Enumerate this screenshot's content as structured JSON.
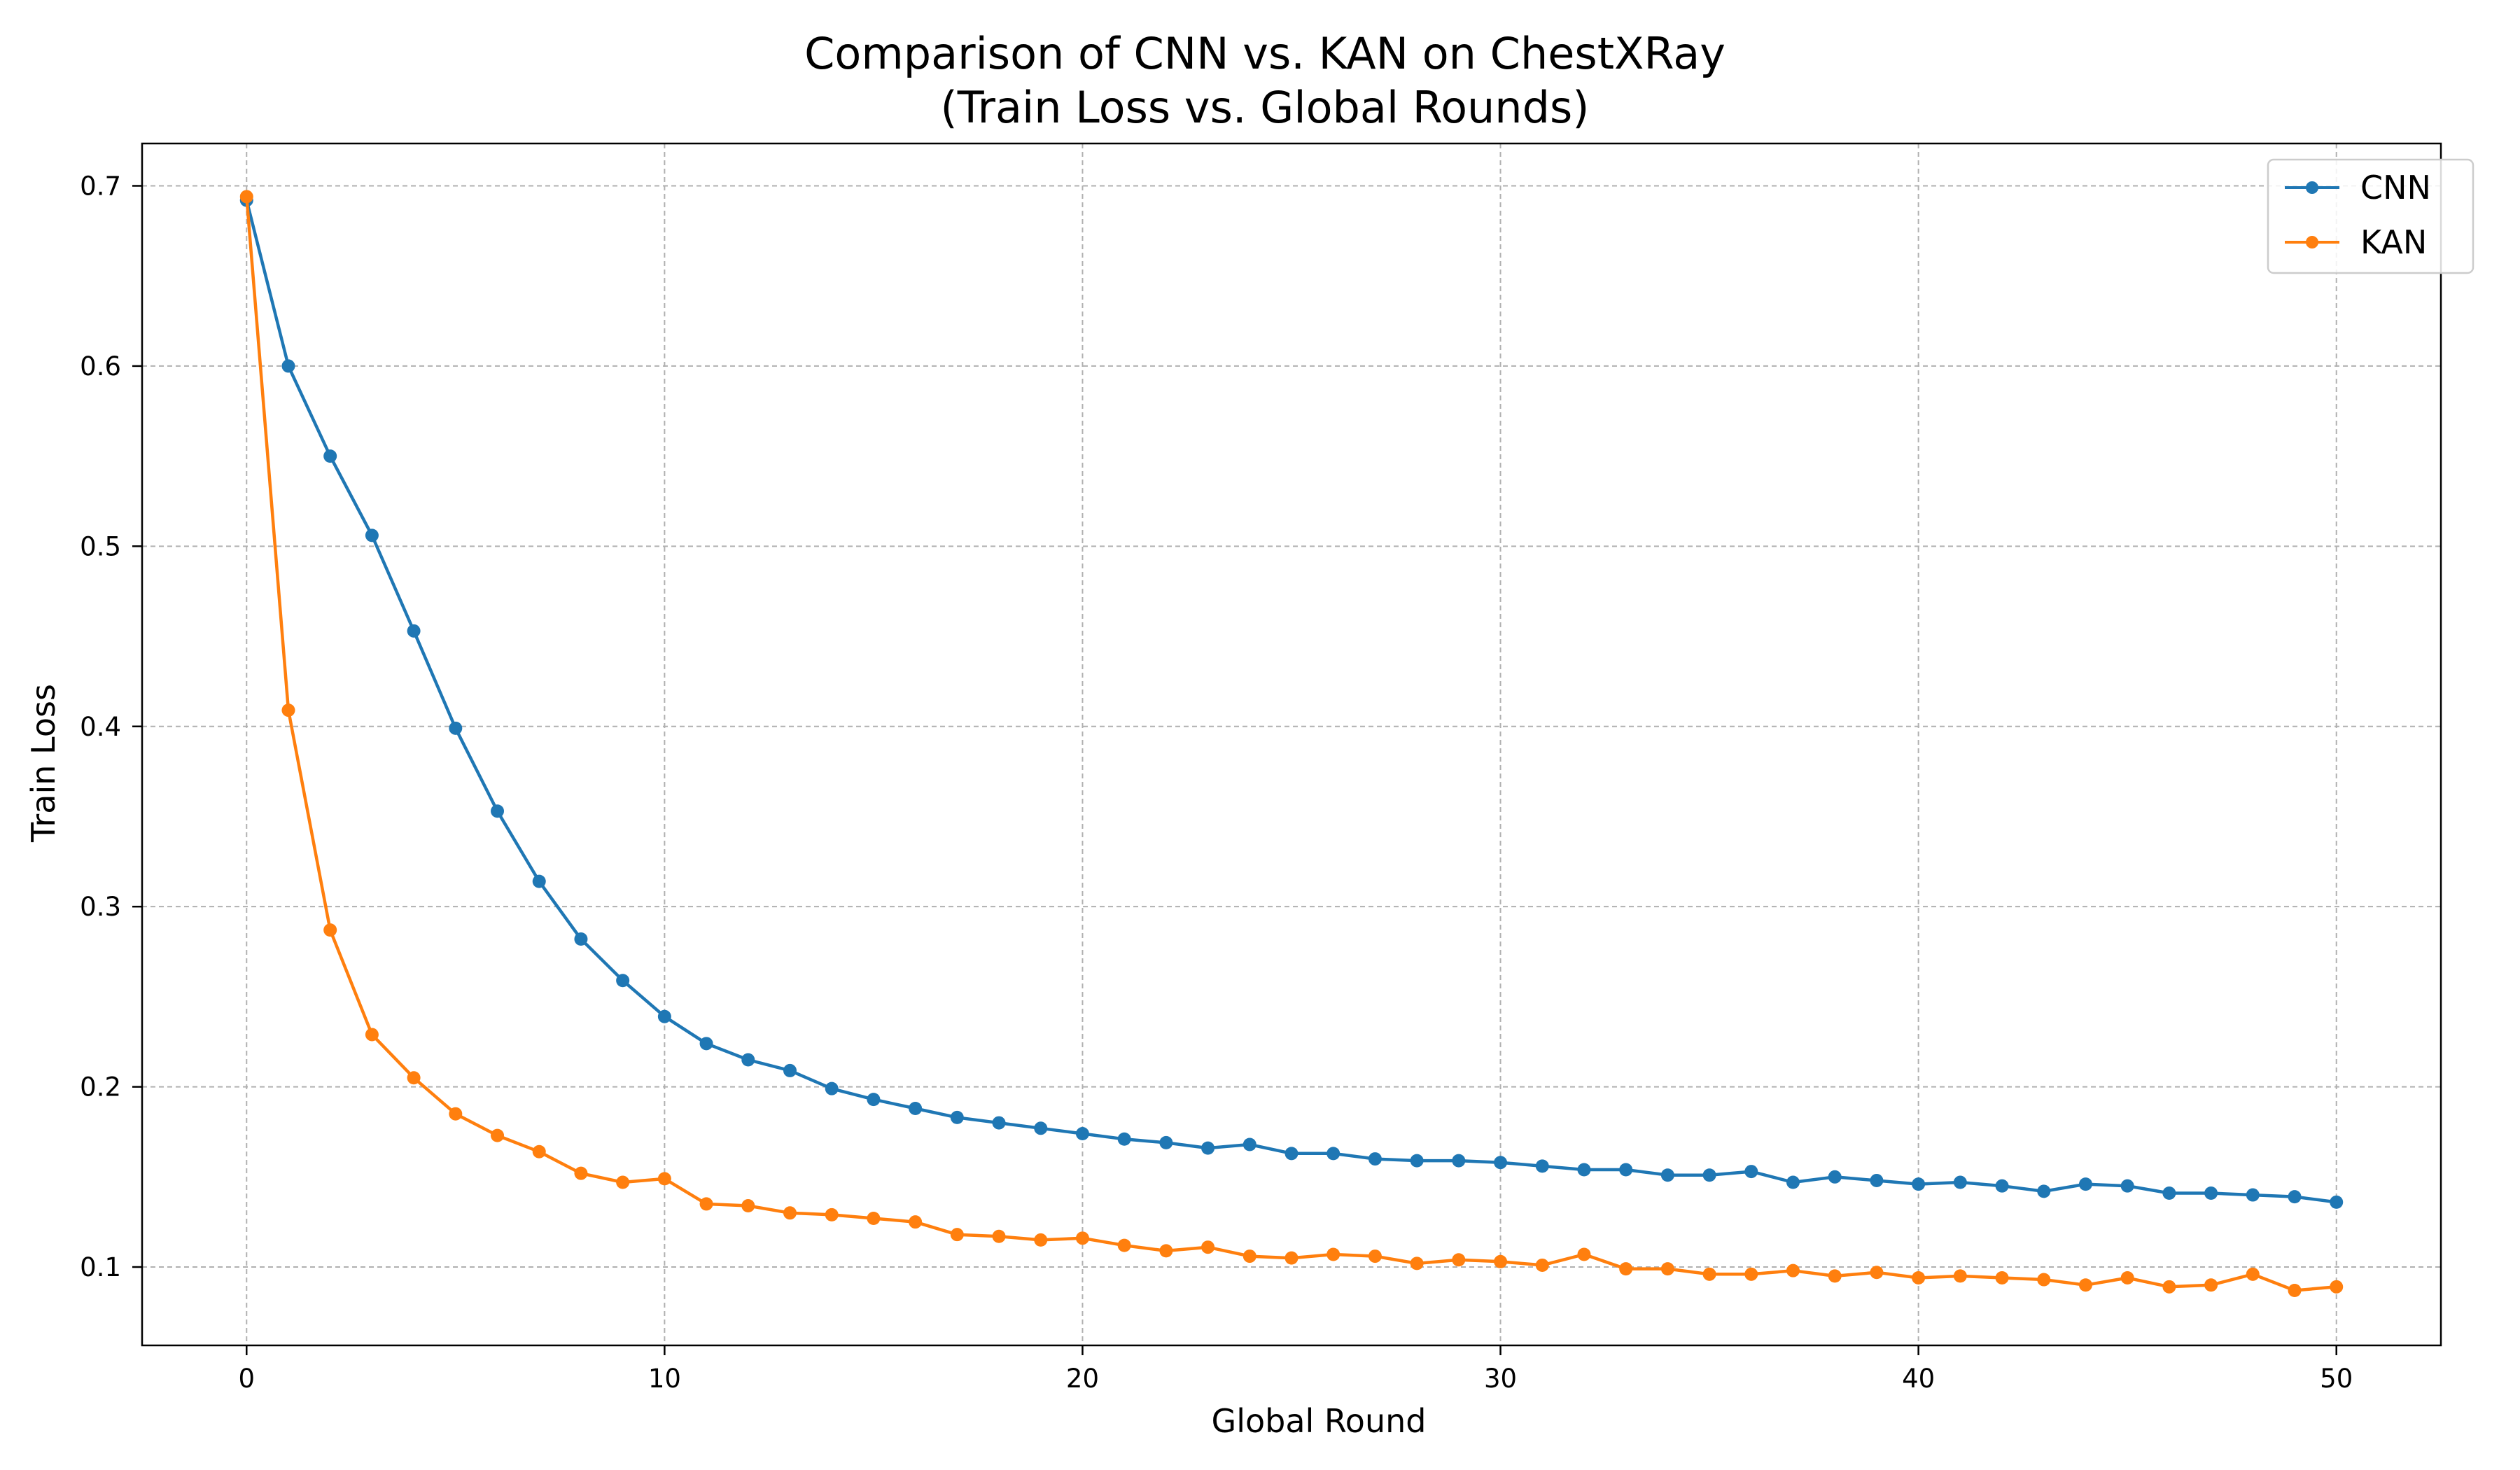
{
  "chart_data": {
    "type": "line",
    "title_line1": "Comparison of CNN vs. KAN on ChestXRay",
    "title_line2": "(Train Loss vs. Global Rounds)",
    "xlabel": "Global Round",
    "ylabel": "Train Loss",
    "xlim": [
      -2.5,
      52.5
    ],
    "ylim": [
      0.0565,
      0.7235
    ],
    "xticks": [
      0,
      10,
      20,
      30,
      40,
      50
    ],
    "yticks": [
      0.1,
      0.2,
      0.3,
      0.4,
      0.5,
      0.6,
      0.7
    ],
    "xtick_labels": [
      "0",
      "10",
      "20",
      "30",
      "40",
      "50"
    ],
    "ytick_labels": [
      "0.1",
      "0.2",
      "0.3",
      "0.4",
      "0.5",
      "0.6",
      "0.7"
    ],
    "grid": true,
    "legend_position": "top-right",
    "x": [
      0,
      1,
      2,
      3,
      4,
      5,
      6,
      7,
      8,
      9,
      10,
      11,
      12,
      13,
      14,
      15,
      16,
      17,
      18,
      19,
      20,
      21,
      22,
      23,
      24,
      25,
      26,
      27,
      28,
      29,
      30,
      31,
      32,
      33,
      34,
      35,
      36,
      37,
      38,
      39,
      40,
      41,
      42,
      43,
      44,
      45,
      46,
      47,
      48,
      49,
      50
    ],
    "series": [
      {
        "name": "CNN",
        "color": "#1f77b4",
        "values": [
          0.692,
          0.6,
          0.55,
          0.506,
          0.453,
          0.399,
          0.353,
          0.314,
          0.282,
          0.259,
          0.239,
          0.224,
          0.215,
          0.209,
          0.199,
          0.193,
          0.188,
          0.183,
          0.18,
          0.177,
          0.174,
          0.171,
          0.169,
          0.166,
          0.168,
          0.163,
          0.163,
          0.16,
          0.159,
          0.159,
          0.158,
          0.156,
          0.154,
          0.154,
          0.151,
          0.151,
          0.153,
          0.147,
          0.15,
          0.148,
          0.146,
          0.147,
          0.145,
          0.142,
          0.146,
          0.145,
          0.141,
          0.141,
          0.14,
          0.139,
          0.136
        ]
      },
      {
        "name": "KAN",
        "color": "#ff7f0e",
        "values": [
          0.694,
          0.409,
          0.287,
          0.229,
          0.205,
          0.185,
          0.173,
          0.164,
          0.152,
          0.147,
          0.149,
          0.135,
          0.134,
          0.13,
          0.129,
          0.127,
          0.125,
          0.118,
          0.117,
          0.115,
          0.116,
          0.112,
          0.109,
          0.111,
          0.106,
          0.105,
          0.107,
          0.106,
          0.102,
          0.104,
          0.103,
          0.101,
          0.107,
          0.099,
          0.099,
          0.096,
          0.096,
          0.098,
          0.095,
          0.097,
          0.094,
          0.095,
          0.094,
          0.093,
          0.09,
          0.094,
          0.089,
          0.09,
          0.096,
          0.087,
          0.089
        ]
      }
    ]
  }
}
